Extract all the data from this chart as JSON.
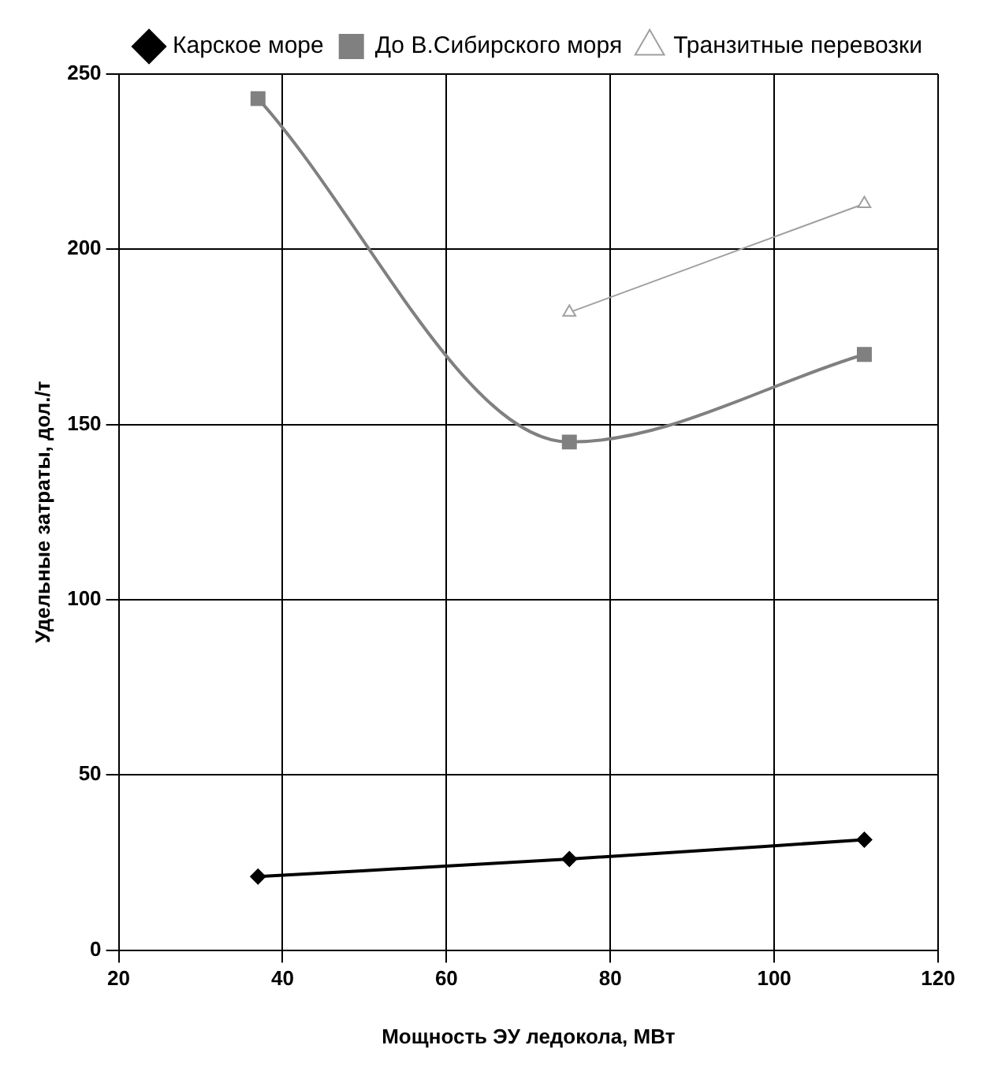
{
  "chart_data": {
    "type": "line",
    "xlabel": "Мощность ЭУ ледокола, МВт",
    "ylabel": "Удельные затраты, дол./т",
    "xlim": [
      20,
      120
    ],
    "xticks": [
      20,
      40,
      60,
      80,
      100,
      120
    ],
    "ylim": [
      0,
      250
    ],
    "yticks": [
      0,
      50,
      100,
      150,
      200,
      250
    ],
    "grid": true,
    "legend": "top right",
    "series": [
      {
        "name": "Карское море",
        "color": "#000000",
        "marker": "diamond",
        "x": [
          37,
          75,
          111
        ],
        "values": [
          21,
          26,
          31.5
        ]
      },
      {
        "name": "До В.Сибирского моря",
        "color": "#808080",
        "marker": "square",
        "x": [
          37,
          75,
          111
        ],
        "values": [
          243,
          145,
          170
        ]
      },
      {
        "name": "Транзитные перевозки",
        "color": "#a0a0a0",
        "marker": "triangle",
        "x": [
          75,
          111
        ],
        "values": [
          182,
          213
        ]
      }
    ]
  }
}
